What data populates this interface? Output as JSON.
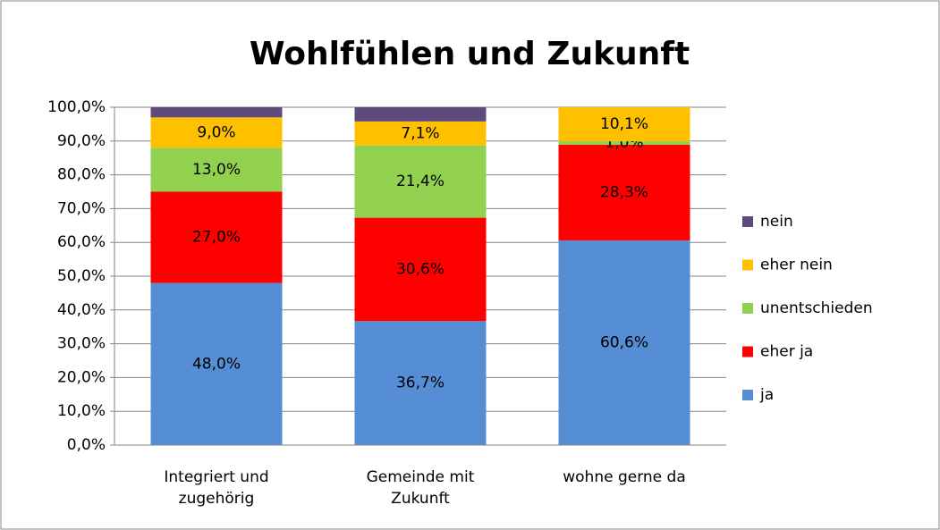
{
  "chart_data": {
    "type": "stacked_bar",
    "title": "Wohlfühlen und Zukunft",
    "categories": [
      "Integriert und zugehörig",
      "Gemeinde mit Zukunft",
      "wohne gerne da"
    ],
    "series": [
      {
        "name": "ja",
        "color": "#558ed5",
        "values": [
          48.0,
          36.7,
          60.6
        ],
        "value_labels": [
          "48,0%",
          "36,7%",
          "60,6%"
        ]
      },
      {
        "name": "eher ja",
        "color": "#ff0000",
        "values": [
          27.0,
          30.6,
          28.3
        ],
        "value_labels": [
          "27,0%",
          "30,6%",
          "28,3%"
        ]
      },
      {
        "name": "unentschieden",
        "color": "#92d050",
        "values": [
          13.0,
          21.4,
          1.0
        ],
        "value_labels": [
          "13,0%",
          "21,4%",
          "1,0%"
        ]
      },
      {
        "name": "eher nein",
        "color": "#ffc000",
        "values": [
          9.0,
          7.1,
          10.1
        ],
        "value_labels": [
          "9,0%",
          "7,1%",
          "10,1%"
        ]
      },
      {
        "name": "nein",
        "color": "#604a7b",
        "values": [
          3.0,
          4.2,
          0
        ],
        "value_labels": [
          null,
          null,
          null
        ]
      }
    ],
    "ylim": [
      0,
      100
    ],
    "yticks": [
      {
        "value": 0,
        "label": "0,0%"
      },
      {
        "value": 10,
        "label": "10,0%"
      },
      {
        "value": 20,
        "label": "20,0%"
      },
      {
        "value": 30,
        "label": "30,0%"
      },
      {
        "value": 40,
        "label": "40,0%"
      },
      {
        "value": 50,
        "label": "50,0%"
      },
      {
        "value": 60,
        "label": "60,0%"
      },
      {
        "value": 70,
        "label": "70,0%"
      },
      {
        "value": 80,
        "label": "80,0%"
      },
      {
        "value": 90,
        "label": "90,0%"
      },
      {
        "value": 100,
        "label": "100,0%"
      }
    ],
    "grid": true,
    "legend": "right"
  }
}
